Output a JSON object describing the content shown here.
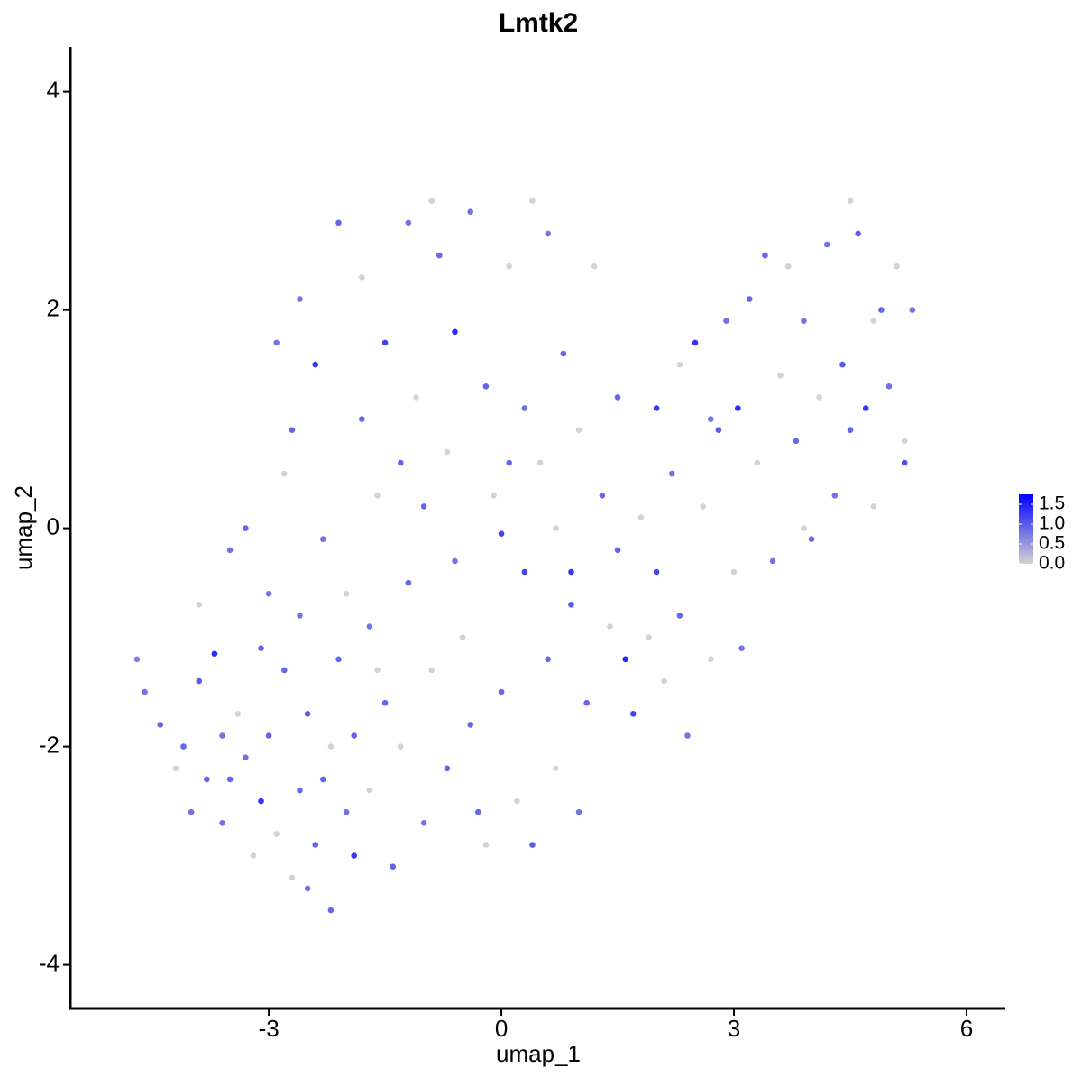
{
  "chart_data": {
    "type": "scatter",
    "title": "Lmtk2",
    "xlabel": "umap_1",
    "ylabel": "umap_2",
    "x": [
      -4.7,
      -4.6,
      -4.4,
      -4.2,
      -4.1,
      -4.0,
      -3.9,
      -3.8,
      -3.7,
      -3.6,
      -3.5,
      -3.5,
      -3.4,
      -3.3,
      -3.2,
      -3.1,
      -3.0,
      -3.0,
      -2.9,
      -2.8,
      -2.8,
      -2.7,
      -2.6,
      -2.6,
      -2.5,
      -2.4,
      -2.4,
      -2.3,
      -2.2,
      -2.2,
      -2.1,
      -2.0,
      -2.0,
      -1.9,
      -1.9,
      -1.8,
      -1.7,
      -1.7,
      -1.6,
      -1.5,
      -1.5,
      -1.4,
      -1.3,
      -1.2,
      -1.2,
      -1.1,
      -1.0,
      -1.0,
      -0.9,
      -0.8,
      -0.7,
      -0.7,
      -0.6,
      -0.6,
      -0.5,
      -0.4,
      -0.3,
      -0.2,
      -0.1,
      0,
      0,
      0.1,
      0.2,
      0.3,
      0.3,
      0.4,
      0.5,
      0.6,
      0.6,
      0.7,
      0.8,
      0.9,
      1.0,
      1.0,
      1.1,
      1.2,
      1.3,
      1.4,
      1.5,
      1.6,
      1.7,
      1.8,
      2.0,
      2.0,
      2.1,
      2.2,
      2.3,
      2.4,
      2.5,
      2.6,
      2.7,
      2.8,
      2.9,
      3.0,
      3.05,
      3.1,
      3.2,
      3.3,
      3.4,
      3.5,
      3.6,
      3.7,
      3.8,
      3.9,
      4.0,
      4.1,
      4.2,
      4.3,
      4.4,
      4.5,
      4.5,
      4.6,
      4.7,
      4.8,
      4.9,
      5.0,
      5.1,
      5.2,
      5.3,
      5.2,
      -3.3,
      -2.9,
      -2.6,
      -2.1,
      -1.8,
      -0.9,
      0.4,
      -3.9,
      -3.6,
      -2.3,
      -1.6,
      -0.4,
      0.9,
      1.9,
      -2.7,
      -1.3,
      0.1,
      0.7,
      1.5,
      2.3,
      -0.2,
      -2.5,
      -3.1,
      3.9,
      2.7,
      4.8
    ],
    "y": [
      -1.2,
      -1.5,
      -1.8,
      -2.2,
      -2.0,
      -2.6,
      -1.4,
      -2.3,
      -1.15,
      -2.7,
      -2.3,
      -0.2,
      -1.7,
      -2.1,
      -3.0,
      -2.5,
      -1.9,
      -0.6,
      -2.8,
      -1.3,
      0.5,
      -3.2,
      -2.4,
      -0.8,
      -1.7,
      -2.9,
      1.5,
      -0.1,
      -3.5,
      -2.0,
      -1.2,
      -2.6,
      -0.6,
      -3.0,
      -1.9,
      1.0,
      -2.4,
      -0.9,
      0.3,
      1.7,
      -1.6,
      -3.1,
      -2.0,
      -0.5,
      2.8,
      1.2,
      -2.7,
      0.2,
      -1.3,
      2.5,
      0.7,
      -2.2,
      1.8,
      -0.3,
      -1.0,
      2.9,
      -2.6,
      1.3,
      0.3,
      -1.5,
      -0.05,
      2.4,
      -2.5,
      1.1,
      -0.4,
      -2.9,
      0.6,
      -1.2,
      2.7,
      -2.2,
      1.6,
      -0.4,
      0.9,
      -2.6,
      -1.6,
      2.4,
      0.3,
      -0.9,
      1.2,
      -1.2,
      -1.7,
      0.1,
      1.1,
      -0.4,
      -1.4,
      0.5,
      1.5,
      -1.9,
      1.7,
      0.2,
      -1.2,
      0.9,
      1.9,
      -0.4,
      1.1,
      -1.1,
      2.1,
      0.6,
      2.5,
      -0.3,
      1.4,
      2.4,
      0.8,
      1.9,
      -0.1,
      1.2,
      2.6,
      0.3,
      1.5,
      3.0,
      0.9,
      2.7,
      1.1,
      0.2,
      2.0,
      1.3,
      2.4,
      0.6,
      2.0,
      0.8,
      0.0,
      1.7,
      2.1,
      2.8,
      2.3,
      3.0,
      3.0,
      -0.7,
      -1.9,
      -2.3,
      -1.3,
      -1.8,
      -0.7,
      -1.0,
      0.9,
      0.6,
      0.6,
      0.0,
      -0.2,
      -0.8,
      -2.9,
      -3.3,
      -1.1,
      0.0,
      1.0,
      1.9
    ],
    "values": [
      0.7,
      0.8,
      0.9,
      0,
      0.9,
      0.8,
      1.0,
      0.9,
      1.4,
      0.8,
      0.9,
      0.8,
      0,
      0.8,
      0,
      1.3,
      0.9,
      0.8,
      0,
      0.9,
      0,
      0,
      0.9,
      0.8,
      1.0,
      0.9,
      1.3,
      0.8,
      0.9,
      0,
      0.9,
      0.8,
      0,
      1.3,
      0.9,
      0.9,
      0,
      0.8,
      0,
      1.2,
      0.9,
      0.9,
      0,
      0.9,
      0.8,
      0,
      0.8,
      0.9,
      0,
      0.9,
      0,
      0.9,
      1.4,
      0.8,
      0,
      0.8,
      0.9,
      0.9,
      0,
      0.9,
      1.2,
      0,
      0,
      0.8,
      1.2,
      1.0,
      0,
      0.9,
      0.8,
      0,
      0.9,
      1.3,
      0,
      0.8,
      0.9,
      0,
      0.9,
      0,
      0.9,
      1.4,
      1.2,
      0,
      1.3,
      1.2,
      0,
      0.8,
      0,
      0.8,
      1.3,
      0,
      0,
      1.0,
      0.8,
      0,
      1.4,
      0.8,
      0.9,
      0,
      0.9,
      0.8,
      0,
      0,
      0.9,
      0.8,
      0.9,
      0,
      0.8,
      0.8,
      1.0,
      0,
      0.9,
      1.0,
      1.3,
      0,
      0.9,
      0.8,
      0,
      1.1,
      0.8,
      0,
      0.9,
      0.8,
      0.8,
      0.9,
      0,
      0,
      0,
      0,
      0.8,
      0.9,
      0,
      0.9,
      1.0,
      0,
      0.9,
      0.9,
      0.9,
      0,
      0.9,
      0.9,
      0,
      0.8,
      0.9,
      0,
      0.8,
      0
    ],
    "xlim": [
      -5.56,
      6.5
    ],
    "xticks": [
      -3,
      0,
      3,
      6
    ],
    "ylim": [
      -4.4,
      4.41
    ],
    "yticks": [
      -4,
      -2,
      0,
      2,
      4
    ],
    "colorbar": {
      "lim": [
        0,
        1.75
      ],
      "colors": [
        "#d3d3d3",
        "#0000ff"
      ],
      "ticks": [
        {
          "value": 0,
          "label": "0.0"
        },
        0.5,
        {
          "value": 1,
          "label": "1.0"
        },
        1.5
      ]
    }
  }
}
